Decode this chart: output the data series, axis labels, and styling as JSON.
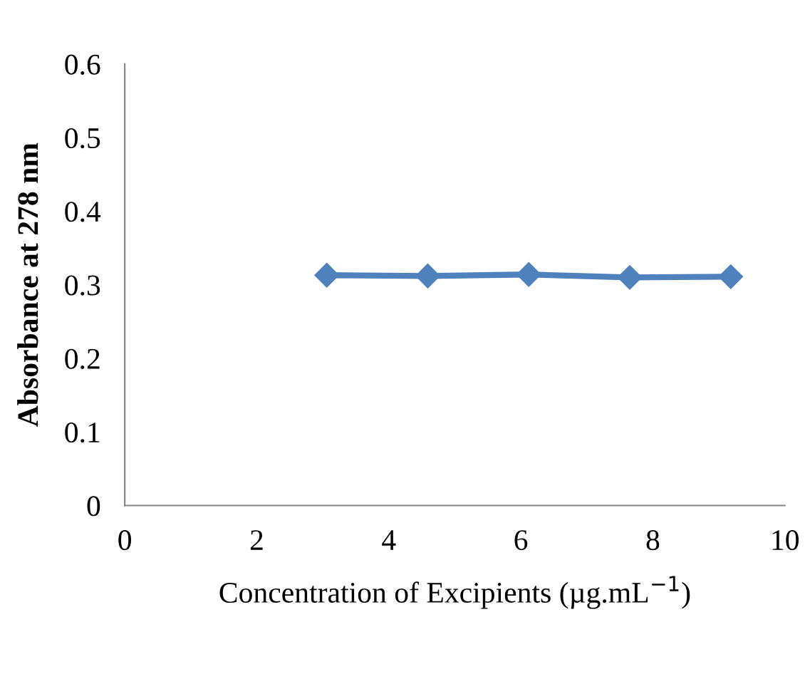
{
  "chart_data": {
    "type": "line",
    "xlabel": "Concentration of Excipients (µg.mL$^{−1}$)",
    "ylabel": "Absorbance at 278 nm",
    "x": [
      3.06,
      4.59,
      6.12,
      7.65,
      9.18
    ],
    "series": [
      {
        "color": "#4f81bd",
        "values": [
          0.313,
          0.312,
          0.314,
          0.31,
          0.311
        ]
      }
    ],
    "xlim": [
      0,
      10
    ],
    "xticks": [
      0,
      2,
      4,
      6,
      8,
      10
    ],
    "ylim": [
      0,
      0.6
    ],
    "yticks": [
      0,
      0.1,
      0.2,
      0.3,
      0.4,
      0.5,
      0.6
    ],
    "grid": false,
    "legend": false,
    "marker": "diamond",
    "line_style": "solid"
  }
}
